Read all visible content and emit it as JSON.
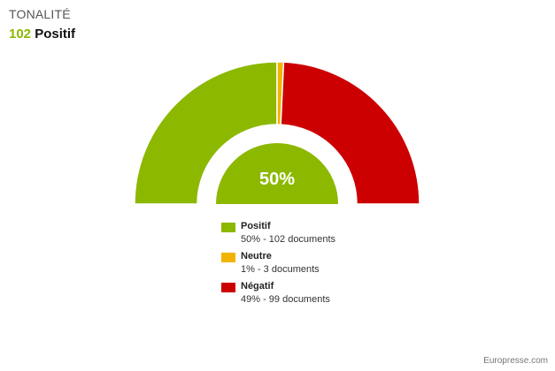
{
  "header": {
    "section_title": "TONALITÉ",
    "headline_count": "102",
    "headline_label": "Positif"
  },
  "chart_data": {
    "type": "pie",
    "style": "semi-donut gauge",
    "center_label": "50%",
    "categories": [
      "Positif",
      "Neutre",
      "Négatif"
    ],
    "values": [
      102,
      3,
      99
    ],
    "percent_labels": [
      "50%",
      "1%",
      "49%"
    ],
    "colors": [
      "#8cb800",
      "#f2b400",
      "#cc0000"
    ],
    "legend": [
      {
        "name": "Positif",
        "detail": "50% - 102 documents",
        "color": "#8cb800"
      },
      {
        "name": "Neutre",
        "detail": "1% - 3 documents",
        "color": "#f2b400"
      },
      {
        "name": "Négatif",
        "detail": "49% - 99 documents",
        "color": "#cc0000"
      }
    ],
    "legend_placement": "bottom"
  },
  "footer": {
    "source": "Europresse.com"
  }
}
